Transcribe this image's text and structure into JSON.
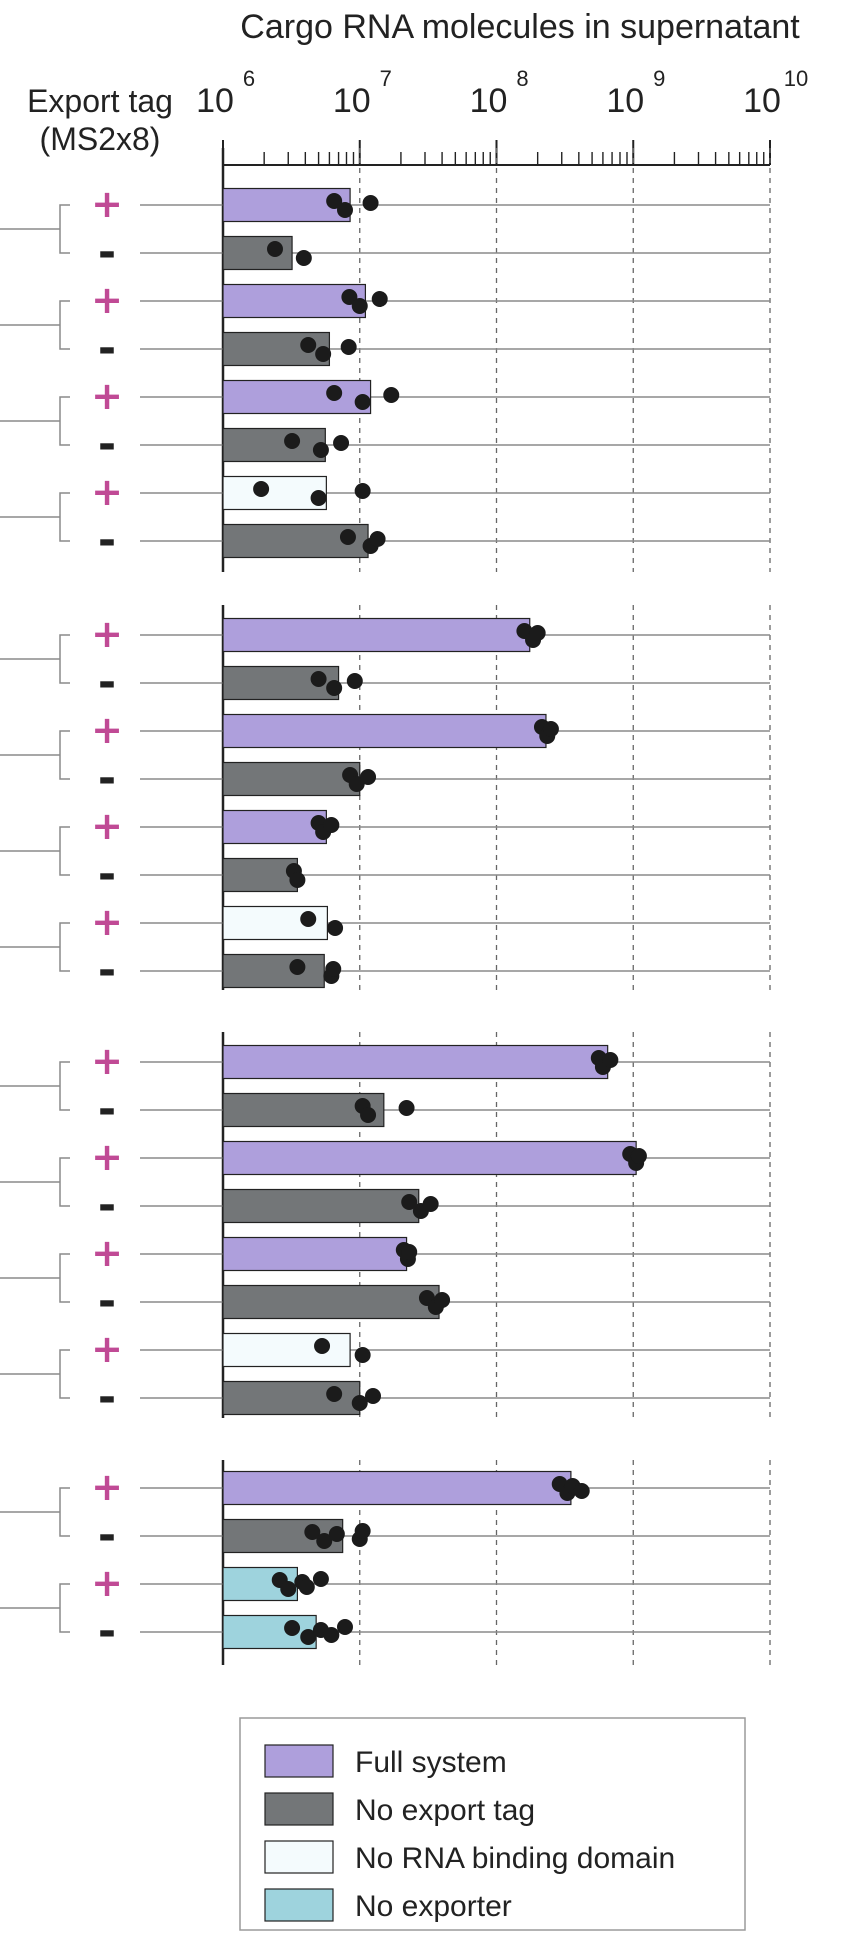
{
  "chart_data": {
    "type": "bar",
    "orientation": "horizontal",
    "scale": "log",
    "title": "Cargo RNA molecules in supernatant",
    "ylabel": "Export tag (MS2x8)",
    "xlim": [
      1000000,
      10000000000
    ],
    "x_ticks": [
      {
        "base": "10",
        "exp": "6"
      },
      {
        "base": "10",
        "exp": "7"
      },
      {
        "base": "10",
        "exp": "8"
      },
      {
        "base": "10",
        "exp": "9"
      },
      {
        "base": "10",
        "exp": "10"
      }
    ],
    "x_tick_values": [
      1000000,
      10000000,
      100000000,
      1000000000,
      10000000000
    ],
    "grid": "vertical dashed at decades",
    "legend_position": "bottom",
    "legend": [
      {
        "key": "full",
        "label": "Full system",
        "color": "#ae9fdc"
      },
      {
        "key": "notag",
        "label": "No export tag",
        "color": "#737678"
      },
      {
        "key": "norbd",
        "label": "No RNA binding domain",
        "color": "#f4fbfd"
      },
      {
        "key": "noexp",
        "label": "No exporter",
        "color": "#9ed3dd"
      }
    ],
    "sign_plus": "+",
    "sign_minus": "-",
    "sign_plus_color": "#c04a95",
    "panels": [
      {
        "rows": [
          {
            "sign": "+",
            "cond": "full",
            "value": 8500000,
            "points": [
              6500000,
              7800000,
              12000000
            ]
          },
          {
            "sign": "-",
            "cond": "notag",
            "value": 3200000,
            "points": [
              2400000,
              3900000
            ]
          },
          {
            "sign": "+",
            "cond": "full",
            "value": 11000000,
            "points": [
              8400000,
              10000000,
              14000000
            ]
          },
          {
            "sign": "-",
            "cond": "notag",
            "value": 6000000,
            "points": [
              4200000,
              5400000,
              8300000
            ]
          },
          {
            "sign": "+",
            "cond": "full",
            "value": 12000000,
            "points": [
              6500000,
              10500000,
              17000000
            ]
          },
          {
            "sign": "-",
            "cond": "notag",
            "value": 5600000,
            "points": [
              3200000,
              5200000,
              7300000
            ]
          },
          {
            "sign": "+",
            "cond": "norbd",
            "value": 5700000,
            "points": [
              1900000,
              5000000,
              10500000
            ]
          },
          {
            "sign": "-",
            "cond": "notag",
            "value": 11500000,
            "points": [
              8200000,
              12000000,
              13500000
            ]
          }
        ]
      },
      {
        "rows": [
          {
            "sign": "+",
            "cond": "full",
            "value": 175000000,
            "points": [
              160000000,
              185000000,
              200000000
            ]
          },
          {
            "sign": "-",
            "cond": "notag",
            "value": 7000000,
            "points": [
              5000000,
              6500000,
              9200000
            ]
          },
          {
            "sign": "+",
            "cond": "full",
            "value": 230000000,
            "points": [
              215000000,
              235000000,
              250000000
            ]
          },
          {
            "sign": "-",
            "cond": "notag",
            "value": 10000000,
            "points": [
              8500000,
              9500000,
              11500000
            ]
          },
          {
            "sign": "+",
            "cond": "full",
            "value": 5700000,
            "points": [
              5000000,
              5400000,
              6200000
            ]
          },
          {
            "sign": "-",
            "cond": "notag",
            "value": 3500000,
            "points": [
              3300000,
              3500000
            ]
          },
          {
            "sign": "+",
            "cond": "norbd",
            "value": 5800000,
            "points": [
              4200000,
              6600000
            ]
          },
          {
            "sign": "-",
            "cond": "notag",
            "value": 5500000,
            "points": [
              3500000,
              6200000,
              6400000
            ]
          }
        ]
      },
      {
        "rows": [
          {
            "sign": "+",
            "cond": "full",
            "value": 650000000,
            "points": [
              560000000,
              600000000,
              680000000
            ]
          },
          {
            "sign": "-",
            "cond": "notag",
            "value": 15000000,
            "points": [
              10500000,
              11500000,
              22000000
            ]
          },
          {
            "sign": "+",
            "cond": "full",
            "value": 1050000000,
            "points": [
              950000000,
              1050000000,
              1100000000
            ]
          },
          {
            "sign": "-",
            "cond": "notag",
            "value": 27000000,
            "points": [
              23000000,
              28000000,
              33000000
            ]
          },
          {
            "sign": "+",
            "cond": "full",
            "value": 22000000,
            "points": [
              21000000,
              22500000,
              23000000
            ]
          },
          {
            "sign": "-",
            "cond": "notag",
            "value": 38000000,
            "points": [
              31000000,
              36000000,
              40000000
            ]
          },
          {
            "sign": "+",
            "cond": "norbd",
            "value": 8500000,
            "points": [
              5300000,
              10500000
            ]
          },
          {
            "sign": "-",
            "cond": "notag",
            "value": 10000000,
            "points": [
              6500000,
              10000000,
              12500000
            ]
          }
        ]
      },
      {
        "rows": [
          {
            "sign": "+",
            "cond": "full",
            "value": 350000000,
            "points": [
              290000000,
              330000000,
              360000000,
              420000000
            ]
          },
          {
            "sign": "-",
            "cond": "notag",
            "value": 7500000,
            "points": [
              4500000,
              5500000,
              6800000,
              10000000,
              10500000
            ]
          },
          {
            "sign": "+",
            "cond": "noexp",
            "value": 3500000,
            "points": [
              2600000,
              3000000,
              3800000,
              4100000,
              5200000
            ]
          },
          {
            "sign": "-",
            "cond": "noexp",
            "value": 4800000,
            "points": [
              3200000,
              4200000,
              5200000,
              6200000,
              7800000
            ]
          }
        ]
      }
    ]
  }
}
